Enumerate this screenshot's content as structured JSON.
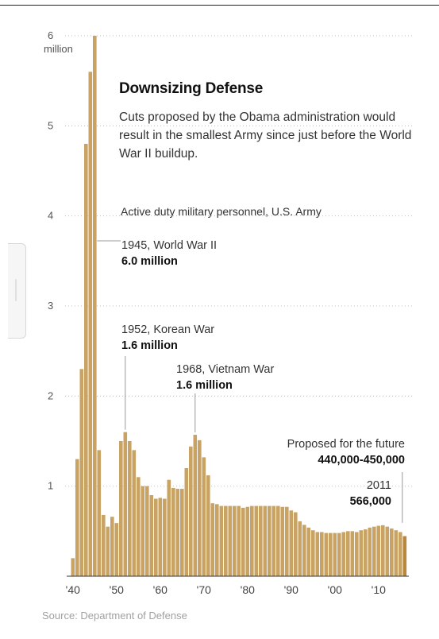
{
  "headline": "Downsizing Defense",
  "description": "Cuts proposed by the Obama administration would result in the smallest Army since just before the World War II buildup.",
  "source": "Source: Department of Defense",
  "colors": {
    "bar": "#c9a364",
    "bar_last": "#b8873c",
    "annotation_line": "#999999",
    "text": "#333333"
  },
  "annotations": {
    "ww2": {
      "label": "1945, World War II",
      "value": "6.0 million"
    },
    "korea": {
      "label": "1952, Korean War",
      "value": "1.6 million"
    },
    "vietnam": {
      "label": "1968, Vietnam War",
      "value": "1.6 million"
    },
    "future": {
      "label": "Proposed for the future",
      "value": "440,000-450,000"
    },
    "y2011": {
      "label": "2011",
      "value": "566,000"
    }
  },
  "chart_data": {
    "type": "bar",
    "title": "Active duty military personnel, U.S. Army",
    "xlabel": "",
    "ylabel": "",
    "y_unit": "million",
    "ylim": [
      0,
      6
    ],
    "yticks": [
      1,
      2,
      3,
      4,
      5,
      6
    ],
    "ytick_labels": [
      "1",
      "2",
      "3",
      "4",
      "5",
      "6"
    ],
    "xticks": [
      1940,
      1950,
      1960,
      1970,
      1980,
      1990,
      2000,
      2010
    ],
    "xtick_labels": [
      "'40",
      "'50",
      "'60",
      "'70",
      "'80",
      "'90",
      "'00",
      "'10"
    ],
    "grid": "dotted horizontal",
    "x": [
      1940,
      1941,
      1942,
      1943,
      1944,
      1945,
      1946,
      1947,
      1948,
      1949,
      1950,
      1951,
      1952,
      1953,
      1954,
      1955,
      1956,
      1957,
      1958,
      1959,
      1960,
      1961,
      1962,
      1963,
      1964,
      1965,
      1966,
      1967,
      1968,
      1969,
      1970,
      1971,
      1972,
      1973,
      1974,
      1975,
      1976,
      1977,
      1978,
      1979,
      1980,
      1981,
      1982,
      1983,
      1984,
      1985,
      1986,
      1987,
      1988,
      1989,
      1990,
      1991,
      1992,
      1993,
      1994,
      1995,
      1996,
      1997,
      1998,
      1999,
      2000,
      2001,
      2002,
      2003,
      2004,
      2005,
      2006,
      2007,
      2008,
      2009,
      2010,
      2011,
      2012,
      2013,
      2014,
      2015,
      "future"
    ],
    "values": [
      0.2,
      1.3,
      2.3,
      4.8,
      5.6,
      6.0,
      1.4,
      0.68,
      0.55,
      0.66,
      0.59,
      1.5,
      1.6,
      1.5,
      1.4,
      1.1,
      1.0,
      1.0,
      0.9,
      0.86,
      0.87,
      0.86,
      1.07,
      0.98,
      0.97,
      0.97,
      1.2,
      1.44,
      1.57,
      1.51,
      1.32,
      1.12,
      0.81,
      0.8,
      0.78,
      0.78,
      0.78,
      0.78,
      0.78,
      0.76,
      0.77,
      0.78,
      0.78,
      0.78,
      0.78,
      0.78,
      0.78,
      0.78,
      0.77,
      0.77,
      0.73,
      0.71,
      0.61,
      0.57,
      0.54,
      0.51,
      0.49,
      0.49,
      0.48,
      0.48,
      0.48,
      0.48,
      0.49,
      0.5,
      0.5,
      0.49,
      0.51,
      0.52,
      0.54,
      0.55,
      0.56,
      0.566,
      0.55,
      0.53,
      0.51,
      0.49,
      0.445
    ]
  }
}
